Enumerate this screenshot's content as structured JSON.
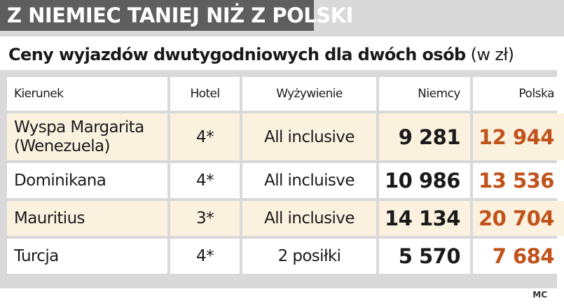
{
  "banner": {
    "title": "Z NIEMIEC TANIEJ NIŻ Z POLSKI"
  },
  "subtitle": {
    "main": "Ceny wyjazdów dwutygodniowych dla dwóch osób",
    "unit": "(w zł)"
  },
  "table": {
    "headers": [
      "Kierunek",
      "Hotel",
      "Wyżywienie",
      "Niemcy",
      "Polska"
    ],
    "rows": [
      {
        "destination": "Wyspa Margarita (Wenezuela)",
        "hotel": "4*",
        "board": "All inclusive",
        "germany": "9 281",
        "poland": "12 944"
      },
      {
        "destination": "Dominikana",
        "hotel": "4*",
        "board": "All incluisve",
        "germany": "10 986",
        "poland": "13 536"
      },
      {
        "destination": "Mauritius",
        "hotel": "3*",
        "board": "All inclusive",
        "germany": "14 134",
        "poland": "20 704"
      },
      {
        "destination": "Turcja",
        "hotel": "4*",
        "board": "2 posiłki",
        "germany": "5 570",
        "poland": "7 684"
      }
    ]
  },
  "source": "MC",
  "colors": {
    "banner": "#5e5e5e",
    "panel": "#d9d9d9",
    "row_alt": "#fbf1df",
    "poland_price": "#c0521b"
  }
}
